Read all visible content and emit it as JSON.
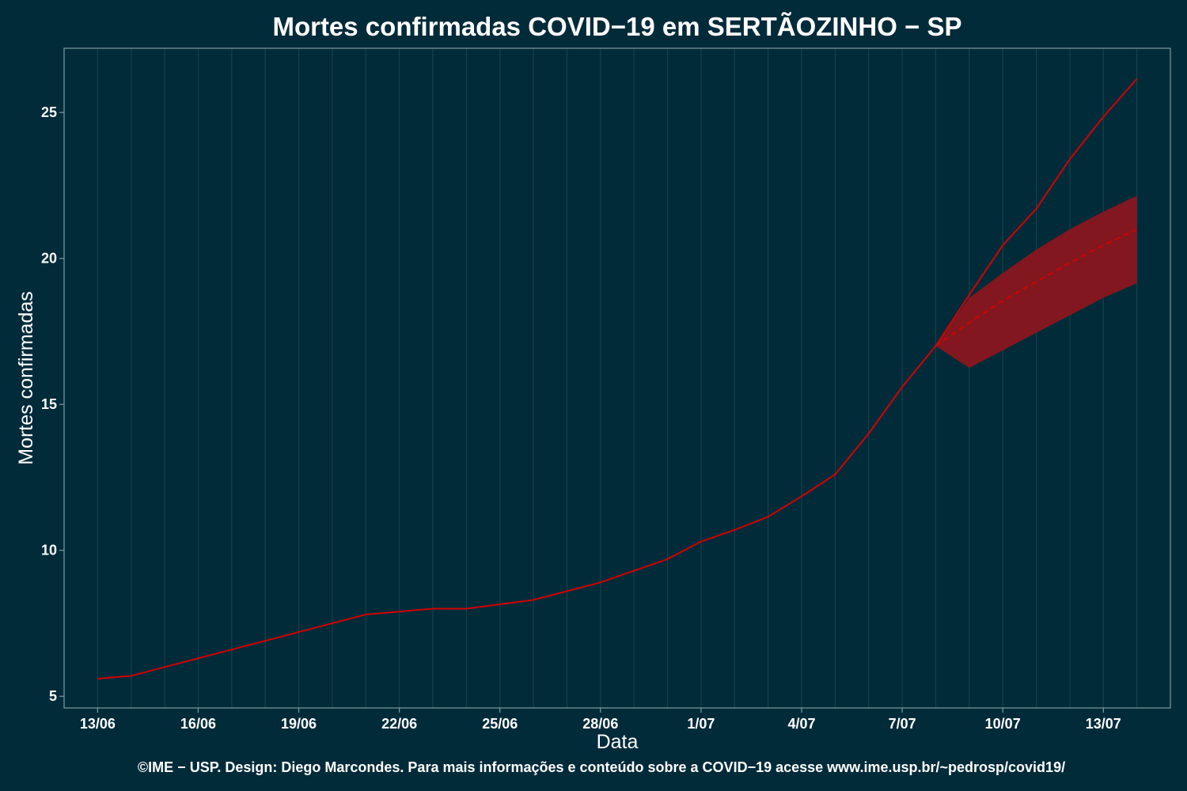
{
  "chart_data": {
    "type": "line",
    "title": "Mortes confirmadas COVID−19 em SERTÃOZINHO − SP",
    "xlabel": "Data",
    "ylabel": "Mortes confirmadas",
    "footer": "©IME − USP. Design: Diego Marcondes. Para mais informações e conteúdo sobre a COVID−19 acesse www.ime.usp.br/~pedrosp/covid19/",
    "x_tick_labels": [
      "13/06",
      "16/06",
      "19/06",
      "22/06",
      "25/06",
      "28/06",
      "1/07",
      "4/07",
      "7/07",
      "10/07",
      "13/07"
    ],
    "x_tick_dates": [
      "2020-06-13",
      "2020-06-16",
      "2020-06-19",
      "2020-06-22",
      "2020-06-25",
      "2020-06-28",
      "2020-07-01",
      "2020-07-04",
      "2020-07-07",
      "2020-07-10",
      "2020-07-13"
    ],
    "y_ticks": [
      5,
      10,
      15,
      20,
      25
    ],
    "ylim": [
      4.6,
      27.2
    ],
    "xlim": [
      "2020-06-12",
      "2020-07-15"
    ],
    "grid": "vertical only",
    "colors": {
      "background": "#022b3a",
      "line": "#d40000",
      "band": "#82171f",
      "grid": "#17404a"
    },
    "series": [
      {
        "style": "solid",
        "x": [
          "2020-06-13",
          "2020-06-14",
          "2020-06-15",
          "2020-06-16",
          "2020-06-17",
          "2020-06-18",
          "2020-06-19",
          "2020-06-20",
          "2020-06-21",
          "2020-06-22",
          "2020-06-23",
          "2020-06-24",
          "2020-06-25",
          "2020-06-26",
          "2020-06-27",
          "2020-06-28",
          "2020-06-29",
          "2020-06-30",
          "2020-07-01",
          "2020-07-02",
          "2020-07-03",
          "2020-07-04",
          "2020-07-05",
          "2020-07-06",
          "2020-07-07",
          "2020-07-08",
          "2020-07-09",
          "2020-07-10",
          "2020-07-11",
          "2020-07-12",
          "2020-07-13",
          "2020-07-14"
        ],
        "y": [
          5.6,
          5.7,
          6.0,
          6.3,
          6.6,
          6.9,
          7.2,
          7.5,
          7.8,
          7.9,
          8.0,
          8.0,
          8.15,
          8.3,
          8.6,
          8.9,
          9.3,
          9.7,
          10.3,
          10.7,
          11.15,
          11.85,
          12.6,
          14.0,
          15.6,
          17.0,
          18.75,
          20.45,
          21.7,
          23.4,
          24.85,
          26.15
        ]
      },
      {
        "style": "dashed",
        "x": [
          "2020-07-08",
          "2020-07-09",
          "2020-07-10",
          "2020-07-11",
          "2020-07-12",
          "2020-07-13",
          "2020-07-14"
        ],
        "y": [
          17.0,
          17.8,
          18.55,
          19.2,
          19.85,
          20.45,
          21.0
        ]
      }
    ],
    "band": {
      "x": [
        "2020-07-08",
        "2020-07-09",
        "2020-07-10",
        "2020-07-11",
        "2020-07-12",
        "2020-07-13",
        "2020-07-14"
      ],
      "lower": [
        17.0,
        16.25,
        16.85,
        17.45,
        18.05,
        18.65,
        19.15
      ],
      "upper": [
        17.0,
        18.65,
        19.5,
        20.3,
        21.0,
        21.6,
        22.15
      ]
    }
  }
}
